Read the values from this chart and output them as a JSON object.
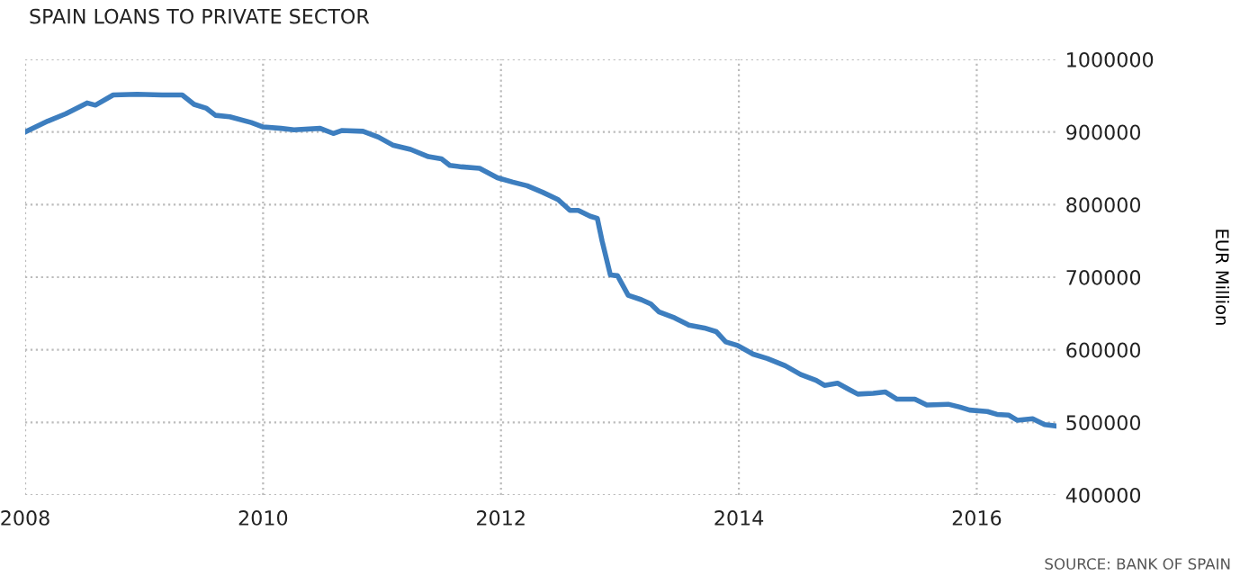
{
  "chart_data": {
    "type": "line",
    "title": "SPAIN LOANS TO PRIVATE SECTOR",
    "ylabel": "EUR Million",
    "annotations": [
      "SOURCE: BANK OF SPAIN"
    ],
    "x": [
      2008.0,
      2008.19,
      2008.34,
      2008.52,
      2008.59,
      2008.74,
      2008.94,
      2009.15,
      2009.32,
      2009.42,
      2009.52,
      2009.6,
      2009.72,
      2009.9,
      2010.0,
      2010.15,
      2010.26,
      2010.48,
      2010.59,
      2010.66,
      2010.84,
      2010.97,
      2011.09,
      2011.24,
      2011.39,
      2011.5,
      2011.57,
      2011.67,
      2011.82,
      2011.97,
      2012.1,
      2012.22,
      2012.35,
      2012.48,
      2012.58,
      2012.65,
      2012.75,
      2012.81,
      2012.85,
      2012.92,
      2012.98,
      2013.07,
      2013.18,
      2013.26,
      2013.33,
      2013.46,
      2013.58,
      2013.71,
      2013.81,
      2013.89,
      2013.99,
      2014.12,
      2014.24,
      2014.39,
      2014.52,
      2014.65,
      2014.72,
      2014.83,
      2014.93,
      2015.0,
      2015.13,
      2015.23,
      2015.33,
      2015.48,
      2015.58,
      2015.76,
      2015.86,
      2015.94,
      2016.09,
      2016.17,
      2016.27,
      2016.34,
      2016.47,
      2016.57,
      2016.67
    ],
    "series": [
      {
        "color": "#3d7ebf",
        "values": [
          900000,
          915000,
          925000,
          940000,
          937000,
          951000,
          952000,
          951000,
          951000,
          938000,
          933000,
          923000,
          921000,
          913000,
          907000,
          905000,
          903000,
          905000,
          898000,
          902000,
          901000,
          893000,
          882000,
          876000,
          866000,
          863000,
          854000,
          852000,
          850000,
          837000,
          831000,
          826000,
          817000,
          807000,
          792000,
          792000,
          784000,
          781000,
          750000,
          703000,
          702000,
          675000,
          669000,
          663000,
          652000,
          644000,
          634000,
          630000,
          625000,
          611000,
          606000,
          594000,
          588000,
          578000,
          566000,
          558000,
          551000,
          554000,
          545000,
          539000,
          540000,
          542000,
          532000,
          532000,
          524000,
          525000,
          521000,
          517000,
          515000,
          511000,
          510000,
          503000,
          505000,
          497000,
          495000
        ]
      }
    ],
    "xlim": [
      2008,
      2016.67
    ],
    "xticks": [
      2008,
      2010,
      2012,
      2014,
      2016
    ],
    "ylim": [
      400000,
      1000000
    ],
    "yticks": [
      400000,
      500000,
      600000,
      700000,
      800000,
      900000,
      1000000
    ],
    "grid": true,
    "legend": false,
    "marker": "none",
    "line_style": "solid"
  }
}
